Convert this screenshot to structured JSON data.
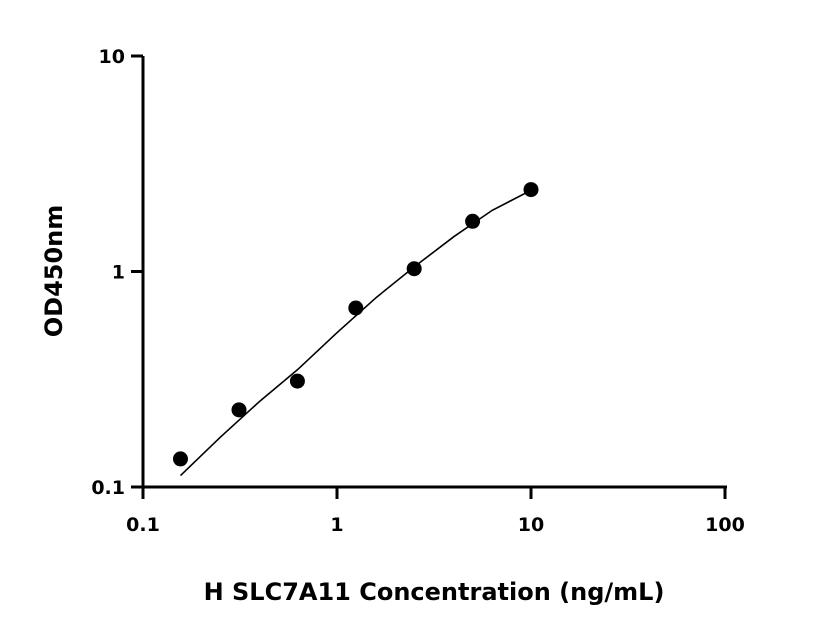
{
  "chart_data": {
    "type": "scatter",
    "title": "",
    "xlabel": "H SLC7A11 Concentration (ng/mL)",
    "ylabel": "OD450nm",
    "xscale": "log",
    "yscale": "log",
    "xlim": [
      0.1,
      100
    ],
    "ylim": [
      0.1,
      10
    ],
    "xticks": [
      "0.1",
      "1",
      "10",
      "100"
    ],
    "yticks": [
      "0.1",
      "1",
      "10"
    ],
    "grid": false,
    "points": {
      "x": [
        0.156,
        0.3125,
        0.625,
        1.25,
        2.5,
        5,
        10
      ],
      "y": [
        0.135,
        0.228,
        0.31,
        0.677,
        1.03,
        1.71,
        2.4
      ]
    },
    "fit_curve": {
      "x": [
        0.156,
        0.25,
        0.4,
        0.625,
        1.0,
        1.6,
        2.5,
        4.0,
        6.3,
        10
      ],
      "y": [
        0.113,
        0.17,
        0.25,
        0.35,
        0.52,
        0.76,
        1.05,
        1.45,
        1.92,
        2.38
      ]
    },
    "colors": {
      "marker": "#000000",
      "line": "#000000"
    }
  }
}
